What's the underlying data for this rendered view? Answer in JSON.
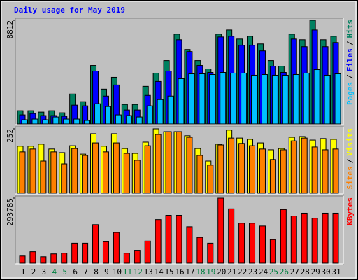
{
  "chart_data": {
    "type": "bar",
    "title": "Daily usage for May 2019",
    "categories": [
      "1",
      "2",
      "3",
      "4",
      "5",
      "6",
      "7",
      "8",
      "9",
      "10",
      "11",
      "12",
      "13",
      "14",
      "15",
      "16",
      "17",
      "18",
      "19",
      "20",
      "21",
      "22",
      "23",
      "24",
      "25",
      "26",
      "27",
      "28",
      "29",
      "30",
      "31"
    ],
    "category_colors": [
      "#000000",
      "#000000",
      "#000000",
      "#008040",
      "#008040",
      "#000000",
      "#000000",
      "#000000",
      "#000000",
      "#000000",
      "#008040",
      "#008040",
      "#000000",
      "#000000",
      "#000000",
      "#000000",
      "#000000",
      "#008040",
      "#008040",
      "#000000",
      "#000000",
      "#000000",
      "#000000",
      "#000000",
      "#008040",
      "#008040",
      "#000000",
      "#000000",
      "#000000",
      "#000000",
      "#000000"
    ],
    "separator": "/",
    "panels": [
      {
        "ylim": [
          0,
          8812
        ],
        "yticks": [
          8812
        ],
        "series": [
          {
            "name": "Hits",
            "color": "#008060",
            "values": [
              1124,
              1124,
              1005,
              1124,
              946,
              2543,
              1893,
              4968,
              2957,
              3962,
              1656,
              1656,
              3194,
              4317,
              5382,
              7629,
              6328,
              5382,
              4672,
              7629,
              7984,
              7215,
              7452,
              6801,
              5382,
              4909,
              7629,
              7156,
              8812,
              7156,
              7452
            ]
          },
          {
            "name": "Files",
            "color": "#0000ff",
            "values": [
              769,
              887,
              710,
              710,
              651,
              1597,
              1538,
              4495,
              2366,
              3312,
              1183,
              1183,
              2425,
              3608,
              4495,
              7156,
              6151,
              4968,
              4376,
              7393,
              7452,
              6683,
              6683,
              6210,
              4909,
              4376,
              7215,
              6565,
              7984,
              6565,
              6919
            ]
          },
          {
            "name": "Pages",
            "color": "#00c0ff",
            "values": [
              355,
              414,
              355,
              591,
              414,
              414,
              296,
              1715,
              1479,
              769,
              710,
              591,
              1538,
              2070,
              2366,
              3844,
              4258,
              4258,
              4199,
              4376,
              4317,
              4317,
              4140,
              4199,
              4140,
              4140,
              4199,
              4317,
              4613,
              4140,
              4258
            ]
          }
        ]
      },
      {
        "ylim": [
          0,
          252
        ],
        "yticks": [
          252
        ],
        "series": [
          {
            "name": "Visits",
            "color": "#ffff00",
            "values": [
              184,
              184,
              192,
              173,
              159,
              186,
              153,
              233,
              184,
              233,
              175,
              156,
              200,
              252,
              241,
              241,
              225,
              175,
              126,
              192,
              247,
              216,
              211,
              197,
              170,
              175,
              219,
              222,
              208,
              214,
              211
            ]
          },
          {
            "name": "Sites",
            "color": "#ff8000",
            "values": [
              162,
              173,
              126,
              162,
              115,
              175,
              148,
              197,
              162,
              197,
              156,
              129,
              186,
              230,
              241,
              241,
              219,
              148,
              110,
              189,
              216,
              195,
              186,
              173,
              132,
              170,
              205,
              216,
              181,
              170,
              173
            ]
          }
        ]
      },
      {
        "ylim": [
          0,
          293785
        ],
        "yticks": [
          293785
        ],
        "series": [
          {
            "name": "KBytes",
            "color": "#ff0000",
            "values": [
              32283,
              51650,
              29055,
              41967,
              45195,
              90386,
              90386,
              174312,
              96843,
              138800,
              45195,
              58106,
              100071,
              196908,
              216279,
              216279,
              164627,
              116212,
              90386,
              293785,
              245334,
              180769,
              180769,
              167854,
              106528,
              242106,
              213050,
              225963,
              203365,
              225963,
              225963
            ]
          }
        ]
      }
    ]
  }
}
